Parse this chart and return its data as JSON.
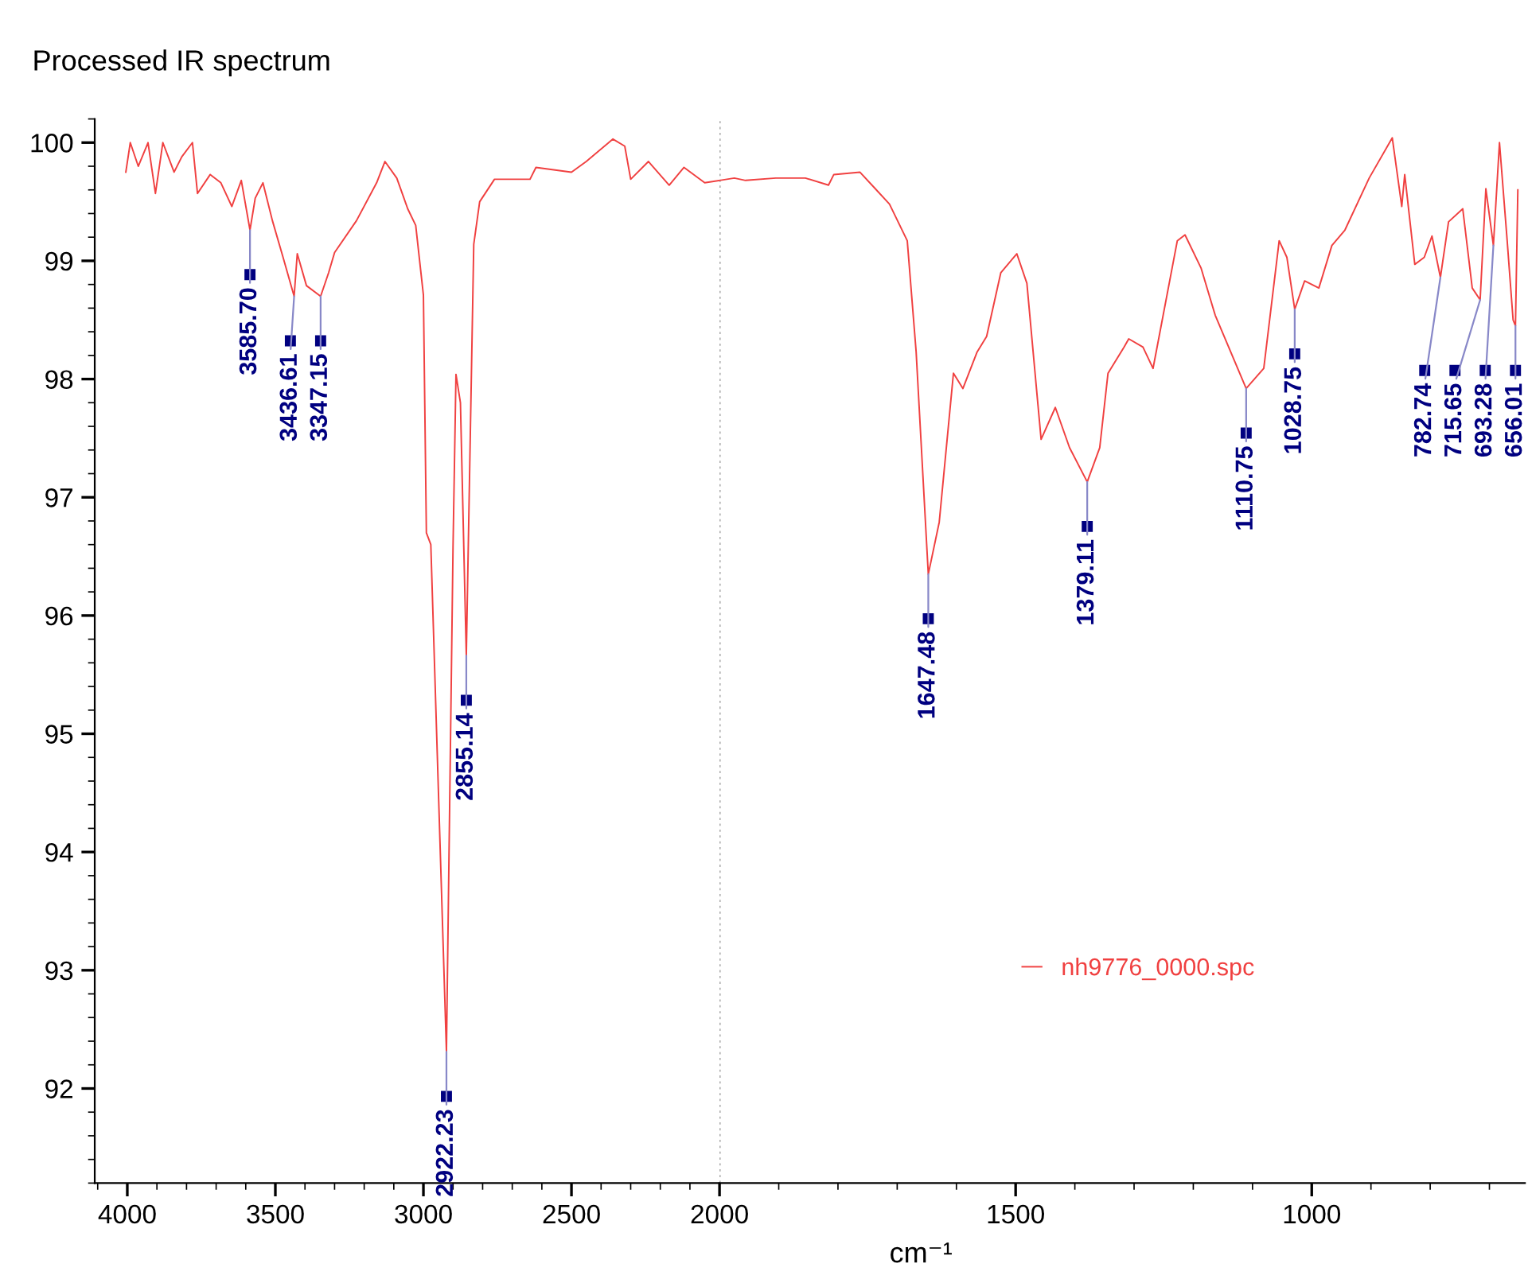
{
  "chart_data": [
    {
      "type": "line",
      "title": "Processed IR spectrum",
      "legend": false,
      "marker": "none",
      "line_style": "solid",
      "grid": false,
      "xlim": [
        4110,
        2000
      ],
      "xticks": [
        4000,
        3500,
        3000,
        2500,
        2000
      ],
      "ylim": [
        91.2,
        100.2
      ],
      "yticks": [
        92,
        93,
        94,
        95,
        96,
        97,
        98,
        99,
        100
      ],
      "series": [
        {
          "color": "#f04040",
          "x": [
            4005,
            3990,
            3963,
            3930,
            3905,
            3880,
            3842,
            3816,
            3780,
            3763,
            3720,
            3684,
            3647,
            3615,
            3585.7,
            3568,
            3542,
            3510,
            3474,
            3436.61,
            3426,
            3395,
            3347.15,
            3320,
            3300,
            3226,
            3158,
            3130,
            3090,
            3053,
            3026,
            3000,
            2990,
            2975,
            2922.23,
            2900,
            2890,
            2875,
            2855.14,
            2830,
            2810,
            2760,
            2640,
            2620,
            2500,
            2450,
            2360,
            2320,
            2300,
            2240,
            2170,
            2120,
            2050,
            2000
          ],
          "values": [
            99.75,
            100.0,
            99.8,
            100.0,
            99.57,
            100.0,
            99.75,
            99.88,
            100.0,
            99.57,
            99.73,
            99.66,
            99.46,
            99.68,
            99.26,
            99.53,
            99.66,
            99.34,
            99.03,
            98.7,
            99.06,
            98.79,
            98.7,
            98.9,
            99.07,
            99.34,
            99.66,
            99.84,
            99.7,
            99.44,
            99.3,
            98.71,
            96.7,
            96.6,
            92.31,
            96.58,
            98.04,
            97.8,
            95.66,
            99.14,
            99.5,
            99.69,
            99.69,
            99.79,
            99.75,
            99.84,
            100.03,
            99.97,
            99.69,
            99.84,
            99.64,
            99.79,
            99.66,
            99.68
          ]
        }
      ],
      "annotations": [
        {
          "text": "3585.70",
          "x": 3585.7,
          "y": 99.26
        },
        {
          "text": "3436.61",
          "x": 3436.61,
          "y": 98.7
        },
        {
          "text": "3347.15",
          "x": 3347.15,
          "y": 98.7
        },
        {
          "text": "2922.23",
          "x": 2922.23,
          "y": 92.31
        },
        {
          "text": "2855.14",
          "x": 2855.14,
          "y": 95.66
        }
      ]
    },
    {
      "type": "line",
      "xlabel": "cm⁻¹",
      "legend": "bottom",
      "marker": "none",
      "line_style": "solid",
      "grid": false,
      "tick_labels": "x",
      "xlim": [
        2000,
        640
      ],
      "xticks": [
        1500,
        1000
      ],
      "ylim": [
        91.2,
        100.2
      ],
      "yticks": [
        92,
        93,
        94,
        95,
        96,
        97,
        98,
        99,
        100
      ],
      "ref_lines": [
        {
          "axis": "x",
          "value": 2000,
          "label": null,
          "color": "#a0a0a0",
          "line_style": "dotted"
        }
      ],
      "series": [
        {
          "name": "nh9776_0000.spc",
          "color": "#f04040",
          "x": [
            2000,
            1975,
            1956,
            1905,
            1855,
            1816,
            1807,
            1763,
            1737,
            1713,
            1683,
            1668,
            1647.48,
            1629,
            1605,
            1589,
            1565,
            1549,
            1525,
            1498,
            1481,
            1457,
            1433,
            1409,
            1379.11,
            1358,
            1344,
            1317,
            1309,
            1285,
            1268,
            1227,
            1214,
            1187,
            1163,
            1110.75,
            1081,
            1055,
            1042,
            1028.75,
            1012,
            988,
            966,
            944,
            903,
            864,
            848,
            843,
            826,
            810,
            797,
            782.74,
            769,
            745,
            729,
            715.65,
            706,
            693.28,
            683,
            670,
            660,
            656.01,
            652
          ],
          "values": [
            99.68,
            99.7,
            99.68,
            99.7,
            99.7,
            99.64,
            99.73,
            99.75,
            99.61,
            99.48,
            99.17,
            98.23,
            96.35,
            96.79,
            98.05,
            97.92,
            98.23,
            98.36,
            98.9,
            99.06,
            98.81,
            97.49,
            97.76,
            97.42,
            97.13,
            97.42,
            98.05,
            98.27,
            98.34,
            98.27,
            98.09,
            99.17,
            99.22,
            98.94,
            98.54,
            97.92,
            98.09,
            99.17,
            99.03,
            98.59,
            98.83,
            98.77,
            99.13,
            99.26,
            99.7,
            100.04,
            99.46,
            99.73,
            98.97,
            99.03,
            99.21,
            98.86,
            99.33,
            99.44,
            98.77,
            98.67,
            99.61,
            99.13,
            100.0,
            99.17,
            98.5,
            98.45,
            99.6
          ]
        }
      ],
      "annotations": [
        {
          "text": "1647.48",
          "x": 1647.48,
          "y": 96.35
        },
        {
          "text": "1379.11",
          "x": 1379.11,
          "y": 97.13
        },
        {
          "text": "1110.75",
          "x": 1110.75,
          "y": 97.92
        },
        {
          "text": "1028.75",
          "x": 1028.75,
          "y": 98.59
        },
        {
          "text": "782.74",
          "x": 782.74,
          "y": 98.86
        },
        {
          "text": "715.65",
          "x": 715.65,
          "y": 98.67
        },
        {
          "text": "693.28",
          "x": 693.28,
          "y": 99.13
        },
        {
          "text": "656.01",
          "x": 656.01,
          "y": 98.45
        }
      ]
    }
  ]
}
